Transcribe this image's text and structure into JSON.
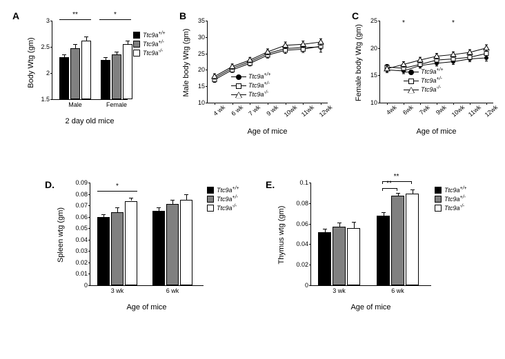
{
  "colors": {
    "wt": "#000000",
    "het": "#808080",
    "ko": "#ffffff",
    "axis": "#000000",
    "bg": "#ffffff"
  },
  "genotypes": {
    "wt": "Ttc9a+/+",
    "het": "Ttc9a+/-",
    "ko": "Ttc9a-/-"
  },
  "panelA": {
    "label": "A",
    "ylabel": "Body Wtg (gm)",
    "xlabel": "2 day old mice",
    "ylim": [
      1.5,
      3.0
    ],
    "yticks": [
      1.5,
      2,
      2.5,
      3
    ],
    "groups": [
      "Male",
      "Female"
    ],
    "data": {
      "Male": {
        "wt": 2.3,
        "het": 2.48,
        "ko": 2.62,
        "wt_err": 0.06,
        "het_err": 0.07,
        "ko_err": 0.08
      },
      "Female": {
        "wt": 2.25,
        "het": 2.35,
        "ko": 2.55,
        "wt_err": 0.05,
        "het_err": 0.06,
        "ko_err": 0.07
      }
    },
    "sig": [
      {
        "group": "Male",
        "label": "**"
      },
      {
        "group": "Female",
        "label": "*"
      }
    ]
  },
  "panelB": {
    "label": "B",
    "ylabel": "Male body Wtg (gm)",
    "xlabel": "Age of mice",
    "ylim": [
      10,
      35
    ],
    "yticks": [
      10,
      15,
      20,
      25,
      30,
      35
    ],
    "x": [
      "4 wk",
      "6 wk",
      "7 wk",
      "9 wk",
      "10wk",
      "11wk",
      "12wk"
    ],
    "series": {
      "wt": [
        17.5,
        20.5,
        22.5,
        25.0,
        26.5,
        26.8,
        27.0
      ],
      "het": [
        17.0,
        20.0,
        22.0,
        24.5,
        26.0,
        26.3,
        27.2
      ],
      "ko": [
        18.0,
        21.0,
        23.0,
        25.5,
        27.5,
        27.8,
        28.5
      ]
    },
    "err": {
      "wt": [
        0.8,
        0.8,
        0.8,
        0.9,
        1.0,
        1.0,
        1.6
      ],
      "het": [
        0.8,
        0.8,
        0.8,
        0.9,
        1.0,
        1.0,
        1.0
      ],
      "ko": [
        0.8,
        0.8,
        0.8,
        0.9,
        1.0,
        1.0,
        1.0
      ]
    }
  },
  "panelC": {
    "label": "C",
    "ylabel": "Female body Wtg (gm)",
    "xlabel": "Age of mice",
    "ylim": [
      10,
      25
    ],
    "yticks": [
      10,
      15,
      20,
      25
    ],
    "x": [
      "4wk",
      "6wk",
      "7wk",
      "9wk",
      "10wk",
      "11wk",
      "12wk"
    ],
    "series": {
      "wt": [
        16.0,
        15.8,
        16.8,
        17.2,
        17.5,
        18.0,
        18.2
      ],
      "het": [
        16.5,
        16.3,
        17.0,
        17.8,
        18.0,
        18.3,
        19.0
      ],
      "ko": [
        16.2,
        17.0,
        17.8,
        18.5,
        18.8,
        19.2,
        20.0
      ]
    },
    "err": {
      "wt": [
        0.5,
        0.5,
        0.5,
        0.5,
        0.5,
        0.5,
        0.6
      ],
      "het": [
        0.5,
        0.5,
        0.5,
        0.5,
        0.5,
        0.5,
        0.6
      ],
      "ko": [
        0.5,
        0.5,
        0.5,
        0.5,
        0.5,
        0.5,
        0.6
      ]
    },
    "sig_x": [
      "6wk",
      "10wk"
    ]
  },
  "panelD": {
    "label": "D.",
    "ylabel": "Spleen wtg (gm)",
    "xlabel": "Age of mice",
    "ylim": [
      0,
      0.09
    ],
    "yticks": [
      0,
      0.01,
      0.02,
      0.03,
      0.04,
      0.05,
      0.06,
      0.07,
      0.08,
      0.09
    ],
    "groups": [
      "3 wk",
      "6 wk"
    ],
    "data": {
      "3 wk": {
        "wt": 0.06,
        "het": 0.064,
        "ko": 0.074,
        "wt_err": 0.002,
        "het_err": 0.004,
        "ko_err": 0.003
      },
      "6 wk": {
        "wt": 0.065,
        "het": 0.071,
        "ko": 0.075,
        "wt_err": 0.003,
        "het_err": 0.004,
        "ko_err": 0.005
      }
    },
    "sig": [
      {
        "group": "3 wk",
        "label": "*"
      }
    ]
  },
  "panelE": {
    "label": "E.",
    "ylabel": "Thymus wtg (gm)",
    "xlabel": "Age of mice",
    "ylim": [
      0,
      0.1
    ],
    "yticks": [
      0,
      0.02,
      0.04,
      0.06,
      0.08,
      0.1
    ],
    "groups": [
      "3 wk",
      "6 wk"
    ],
    "data": {
      "3 wk": {
        "wt": 0.052,
        "het": 0.057,
        "ko": 0.056,
        "wt_err": 0.003,
        "het_err": 0.004,
        "ko_err": 0.006
      },
      "6 wk": {
        "wt": 0.068,
        "het": 0.087,
        "ko": 0.089,
        "wt_err": 0.003,
        "het_err": 0.003,
        "ko_err": 0.004
      }
    },
    "sig": [
      {
        "group": "6 wk",
        "from": "wt",
        "to": "het",
        "label": "**"
      },
      {
        "group": "6 wk",
        "from": "wt",
        "to": "ko",
        "label": "**"
      }
    ]
  }
}
